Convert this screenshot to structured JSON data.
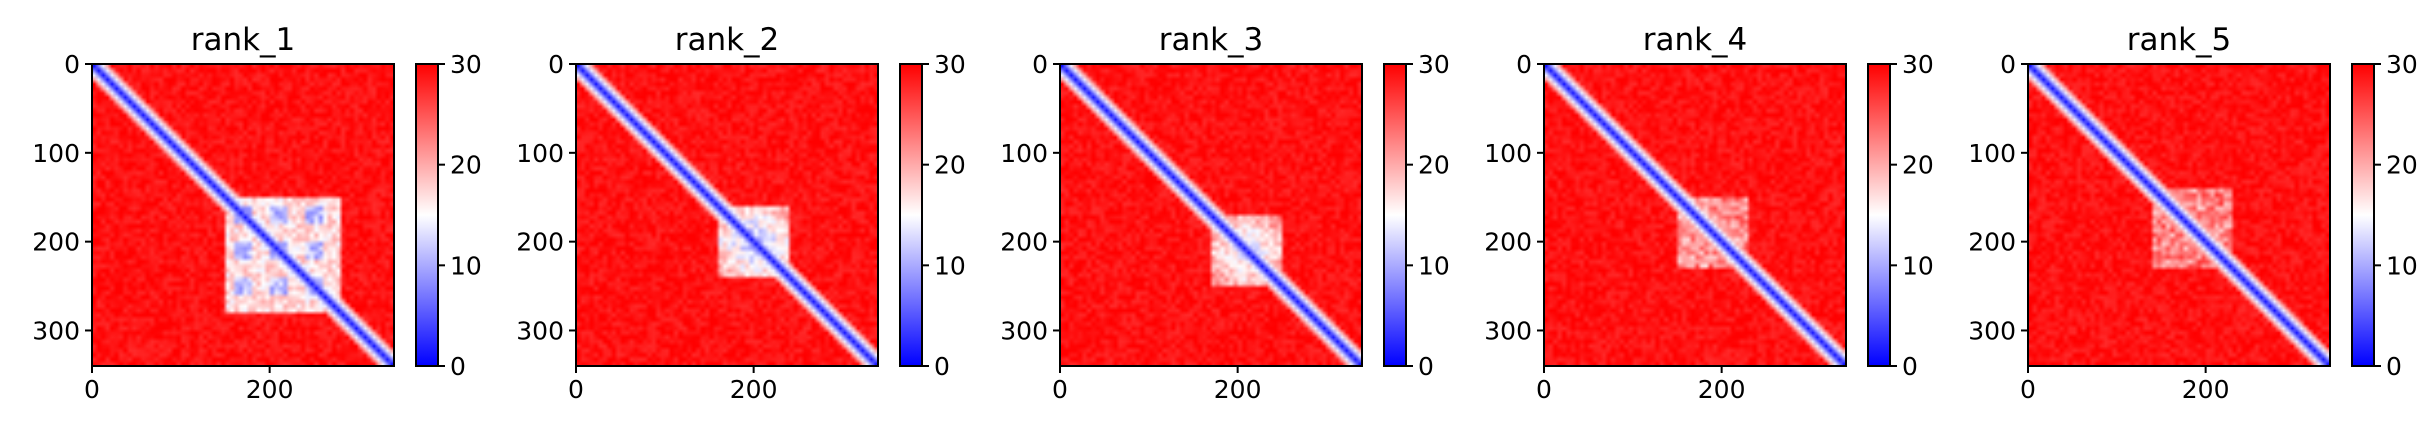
{
  "chart_data": [
    {
      "type": "heatmap",
      "title": "rank_1",
      "matrix_size": 340,
      "xlim": [
        0,
        340
      ],
      "ylim": [
        340,
        0
      ],
      "x_ticks": [
        0,
        200
      ],
      "x_tick_labels": [
        "0",
        "200"
      ],
      "y_ticks": [
        0,
        100,
        200,
        300
      ],
      "y_tick_labels": [
        "0",
        "100",
        "200",
        "300"
      ],
      "colorbar": {
        "min": 0,
        "max": 30,
        "ticks": [
          0,
          10,
          20,
          30
        ],
        "tick_labels": [
          "0",
          "10",
          "20",
          "30"
        ],
        "colormap": "bwr"
      },
      "diagonal_value": 1,
      "background_value": 29,
      "domain_block": {
        "start": 150,
        "end": 280,
        "value": 11,
        "texture": "fine grid"
      }
    },
    {
      "type": "heatmap",
      "title": "rank_2",
      "matrix_size": 340,
      "xlim": [
        0,
        340
      ],
      "ylim": [
        340,
        0
      ],
      "x_ticks": [
        0,
        200
      ],
      "x_tick_labels": [
        "0",
        "200"
      ],
      "y_ticks": [
        0,
        100,
        200,
        300
      ],
      "y_tick_labels": [
        "0",
        "100",
        "200",
        "300"
      ],
      "colorbar": {
        "min": 0,
        "max": 30,
        "ticks": [
          0,
          10,
          20,
          30
        ],
        "tick_labels": [
          "0",
          "10",
          "20",
          "30"
        ],
        "colormap": "bwr"
      },
      "diagonal_value": 1,
      "background_value": 29,
      "domain_block": {
        "start": 160,
        "end": 240,
        "value": 11,
        "texture": "dense core"
      }
    },
    {
      "type": "heatmap",
      "title": "rank_3",
      "matrix_size": 340,
      "xlim": [
        0,
        340
      ],
      "ylim": [
        340,
        0
      ],
      "x_ticks": [
        0,
        200
      ],
      "x_tick_labels": [
        "0",
        "200"
      ],
      "y_ticks": [
        0,
        100,
        200,
        300
      ],
      "y_tick_labels": [
        "0",
        "100",
        "200",
        "300"
      ],
      "colorbar": {
        "min": 0,
        "max": 30,
        "ticks": [
          0,
          10,
          20,
          30
        ],
        "tick_labels": [
          "0",
          "10",
          "20",
          "30"
        ],
        "colormap": "bwr"
      },
      "diagonal_value": 1,
      "background_value": 29,
      "domain_block": {
        "start": 170,
        "end": 250,
        "value": 13,
        "texture": "dense core"
      }
    },
    {
      "type": "heatmap",
      "title": "rank_4",
      "matrix_size": 340,
      "xlim": [
        0,
        340
      ],
      "ylim": [
        340,
        0
      ],
      "x_ticks": [
        0,
        200
      ],
      "x_tick_labels": [
        "0",
        "200"
      ],
      "y_ticks": [
        0,
        100,
        200,
        300
      ],
      "y_tick_labels": [
        "0",
        "100",
        "200",
        "300"
      ],
      "colorbar": {
        "min": 0,
        "max": 30,
        "ticks": [
          0,
          10,
          20,
          30
        ],
        "tick_labels": [
          "0",
          "10",
          "20",
          "30"
        ],
        "colormap": "bwr"
      },
      "diagonal_value": 1,
      "background_value": 29,
      "domain_block": {
        "start": 150,
        "end": 230,
        "value": 19,
        "texture": "sparse"
      }
    },
    {
      "type": "heatmap",
      "title": "rank_5",
      "matrix_size": 340,
      "xlim": [
        0,
        340
      ],
      "ylim": [
        340,
        0
      ],
      "x_ticks": [
        0,
        200
      ],
      "x_tick_labels": [
        "0",
        "200"
      ],
      "y_ticks": [
        0,
        100,
        200,
        300
      ],
      "y_tick_labels": [
        "0",
        "100",
        "200",
        "300"
      ],
      "colorbar": {
        "min": 0,
        "max": 30,
        "ticks": [
          0,
          10,
          20,
          30
        ],
        "tick_labels": [
          "0",
          "10",
          "20",
          "30"
        ],
        "colormap": "bwr"
      },
      "diagonal_value": 1,
      "background_value": 29,
      "domain_block": {
        "start": 140,
        "end": 230,
        "value": 20,
        "texture": "sparse"
      }
    }
  ]
}
